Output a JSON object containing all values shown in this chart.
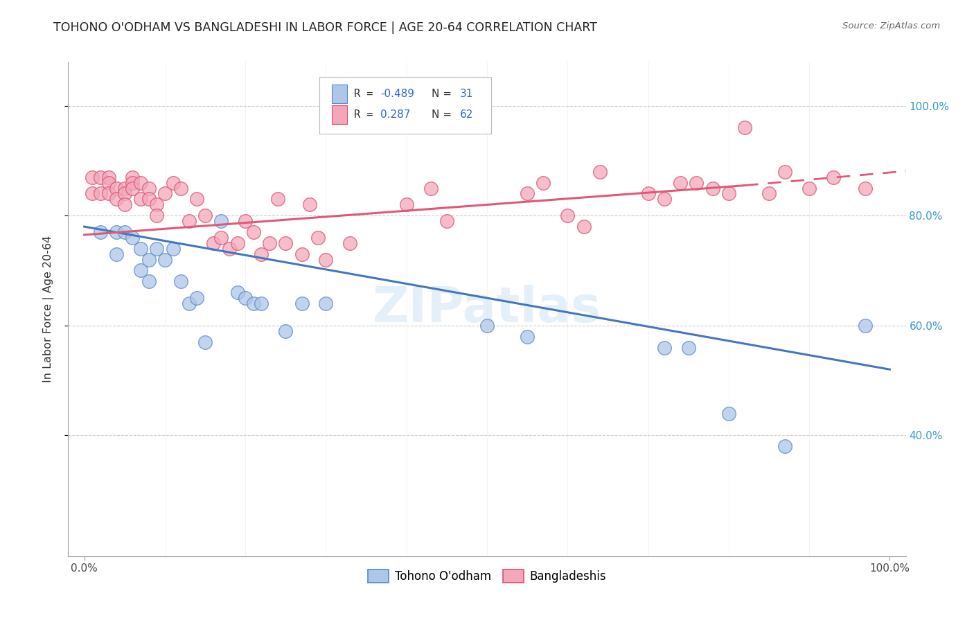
{
  "title": "TOHONO O'ODHAM VS BANGLADESHI IN LABOR FORCE | AGE 20-64 CORRELATION CHART",
  "source": "Source: ZipAtlas.com",
  "ylabel": "In Labor Force | Age 20-64",
  "background_color": "#ffffff",
  "blue_fill": "#aec6e8",
  "blue_edge": "#5588cc",
  "pink_fill": "#f4a7b9",
  "pink_edge": "#d95070",
  "blue_line": "#4477bb",
  "pink_line": "#e05878",
  "watermark": "ZIPatlas",
  "tohono_x": [
    0.02,
    0.04,
    0.04,
    0.05,
    0.06,
    0.07,
    0.07,
    0.08,
    0.08,
    0.09,
    0.1,
    0.11,
    0.12,
    0.13,
    0.14,
    0.15,
    0.17,
    0.19,
    0.2,
    0.21,
    0.22,
    0.25,
    0.27,
    0.3,
    0.5,
    0.55,
    0.72,
    0.75,
    0.8,
    0.87,
    0.97
  ],
  "tohono_y": [
    0.77,
    0.77,
    0.73,
    0.77,
    0.76,
    0.74,
    0.7,
    0.72,
    0.68,
    0.74,
    0.72,
    0.74,
    0.68,
    0.64,
    0.65,
    0.57,
    0.79,
    0.66,
    0.65,
    0.64,
    0.64,
    0.59,
    0.64,
    0.64,
    0.6,
    0.58,
    0.56,
    0.56,
    0.44,
    0.38,
    0.6
  ],
  "bangladeshi_x": [
    0.01,
    0.01,
    0.02,
    0.02,
    0.03,
    0.03,
    0.03,
    0.04,
    0.04,
    0.05,
    0.05,
    0.05,
    0.06,
    0.06,
    0.06,
    0.07,
    0.07,
    0.08,
    0.08,
    0.09,
    0.09,
    0.1,
    0.11,
    0.12,
    0.13,
    0.14,
    0.15,
    0.16,
    0.17,
    0.18,
    0.19,
    0.2,
    0.21,
    0.22,
    0.23,
    0.24,
    0.25,
    0.27,
    0.28,
    0.29,
    0.3,
    0.33,
    0.4,
    0.43,
    0.45,
    0.55,
    0.57,
    0.6,
    0.62,
    0.64,
    0.7,
    0.72,
    0.74,
    0.76,
    0.78,
    0.8,
    0.82,
    0.85,
    0.87,
    0.9,
    0.93,
    0.97
  ],
  "bangladeshi_y": [
    0.87,
    0.84,
    0.87,
    0.84,
    0.87,
    0.86,
    0.84,
    0.85,
    0.83,
    0.85,
    0.84,
    0.82,
    0.87,
    0.86,
    0.85,
    0.86,
    0.83,
    0.85,
    0.83,
    0.82,
    0.8,
    0.84,
    0.86,
    0.85,
    0.79,
    0.83,
    0.8,
    0.75,
    0.76,
    0.74,
    0.75,
    0.79,
    0.77,
    0.73,
    0.75,
    0.83,
    0.75,
    0.73,
    0.82,
    0.76,
    0.72,
    0.75,
    0.82,
    0.85,
    0.79,
    0.84,
    0.86,
    0.8,
    0.78,
    0.88,
    0.84,
    0.83,
    0.86,
    0.86,
    0.85,
    0.84,
    0.96,
    0.84,
    0.88,
    0.85,
    0.87,
    0.85
  ],
  "blue_trendline": [
    0.0,
    1.0,
    0.78,
    0.52
  ],
  "pink_trendline_solid": [
    0.0,
    0.82,
    0.765,
    0.855
  ],
  "pink_trendline_dash": [
    0.82,
    1.05,
    0.855,
    0.885
  ],
  "xlim": [
    -0.02,
    1.02
  ],
  "ylim": [
    0.18,
    1.08
  ],
  "ytick_vals": [
    0.4,
    0.6,
    0.8,
    1.0
  ],
  "ytick_labels": [
    "40.0%",
    "60.0%",
    "80.0%",
    "100.0%"
  ],
  "xtick_vals": [
    0.0,
    1.0
  ],
  "xtick_labels": [
    "0.0%",
    "100.0%"
  ],
  "grid_color": "#cccccc"
}
